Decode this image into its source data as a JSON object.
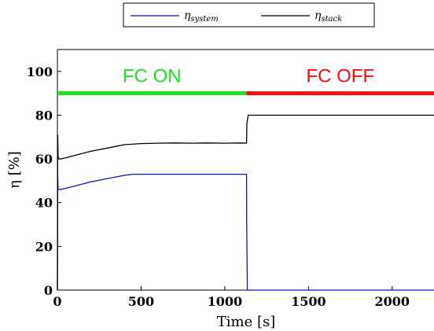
{
  "chart_data": {
    "type": "line",
    "xlabel": "Time [s]",
    "ylabel": "η [%]",
    "xlim": [
      0,
      2250
    ],
    "ylim": [
      0,
      110
    ],
    "xticks": [
      0,
      500,
      1000,
      1500,
      2000
    ],
    "yticks": [
      0,
      20,
      40,
      60,
      80,
      100
    ],
    "grid": false,
    "legend": {
      "placement": "top",
      "entries": [
        {
          "main": "η",
          "sub": "system",
          "color": "#1010c8"
        },
        {
          "main": "η",
          "sub": "stack",
          "color": "#000000"
        }
      ]
    },
    "series": [
      {
        "color": "#1010c8",
        "x": [
          0,
          2,
          4,
          10,
          20,
          100,
          200,
          300,
          400,
          450,
          500,
          600,
          800,
          1000,
          1130,
          1131,
          1135,
          1500,
          2000,
          2250
        ],
        "y": [
          0,
          52,
          46,
          46,
          46,
          47.5,
          49.5,
          51,
          52.5,
          53,
          53,
          53,
          53,
          53,
          53,
          30,
          0,
          0,
          0,
          0
        ]
      },
      {
        "color": "#000000",
        "x": [
          0,
          2,
          4,
          10,
          20,
          50,
          100,
          150,
          200,
          300,
          400,
          500,
          600,
          700,
          800,
          900,
          1000,
          1100,
          1130,
          1132,
          1140,
          1200,
          1500,
          1800,
          2000,
          2250
        ],
        "y": [
          0,
          71,
          61,
          60,
          60,
          60.5,
          61.5,
          62.5,
          63.5,
          65,
          66.5,
          67,
          67.2,
          67.3,
          67.2,
          67.3,
          67.2,
          67.3,
          67.2,
          76,
          80,
          80,
          80,
          80,
          80,
          80
        ]
      }
    ],
    "annotations": [
      {
        "text": "FC ON",
        "color": "#22dd22",
        "x_start": 0,
        "x_end": 1130,
        "y": 90
      },
      {
        "text": "FC OFF",
        "color": "#ee1111",
        "x_start": 1130,
        "x_end": 2250,
        "y": 90
      }
    ]
  }
}
